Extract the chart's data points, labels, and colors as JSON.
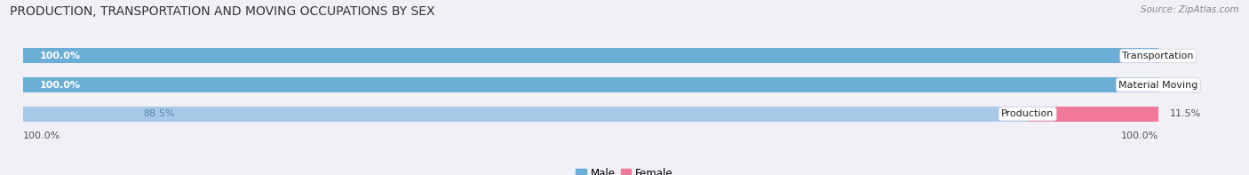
{
  "title": "PRODUCTION, TRANSPORTATION AND MOVING OCCUPATIONS BY SEX",
  "source": "Source: ZipAtlas.com",
  "categories": [
    "Transportation",
    "Material Moving",
    "Production"
  ],
  "male_pct": [
    100.0,
    100.0,
    88.5
  ],
  "female_pct": [
    0.0,
    0.0,
    11.5
  ],
  "male_color_full": "#6aaed6",
  "male_color_light": "#a8c8e8",
  "female_color": "#f07898",
  "bg_color": "#f0f0f6",
  "bar_bg_color": "#e2e2ec",
  "title_fontsize": 10,
  "source_fontsize": 7.5,
  "legend_label_male": "Male",
  "legend_label_female": "Female",
  "left_axis_label": "100.0%",
  "right_axis_label": "100.0%"
}
